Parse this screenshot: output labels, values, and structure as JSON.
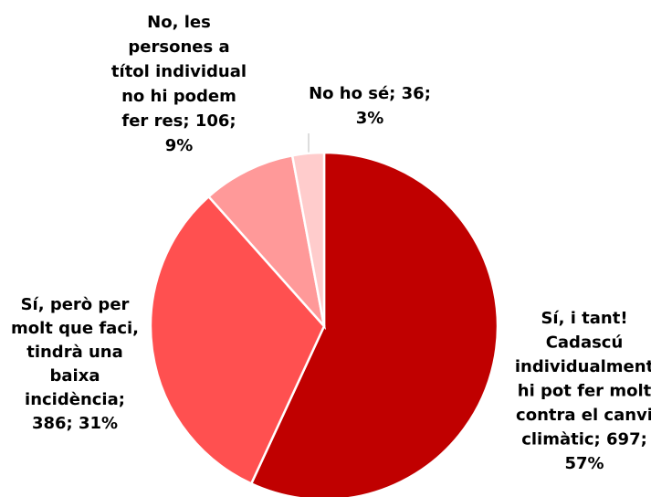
{
  "chart_data": {
    "type": "pie",
    "values": [
      697,
      386,
      106,
      36
    ],
    "colors": [
      "#c00000",
      "#ff5050",
      "#ff9999",
      "#ffcccc"
    ],
    "value_labels": [
      [
        "Sí, i tant!",
        "Cadascú",
        "individualment",
        "hi pot fer molt",
        "contra el canvi",
        "climàtic; 697;",
        "57%"
      ],
      [
        "Sí, però per",
        "molt que faci,",
        "tindrà una",
        "baixa",
        "incidència;",
        "386; 31%"
      ],
      [
        "No, les",
        "persones a",
        "títol individual",
        "no hi podem",
        "fer res; 106;",
        "9%"
      ],
      [
        "No ho sé; 36;",
        "3%"
      ]
    ]
  }
}
